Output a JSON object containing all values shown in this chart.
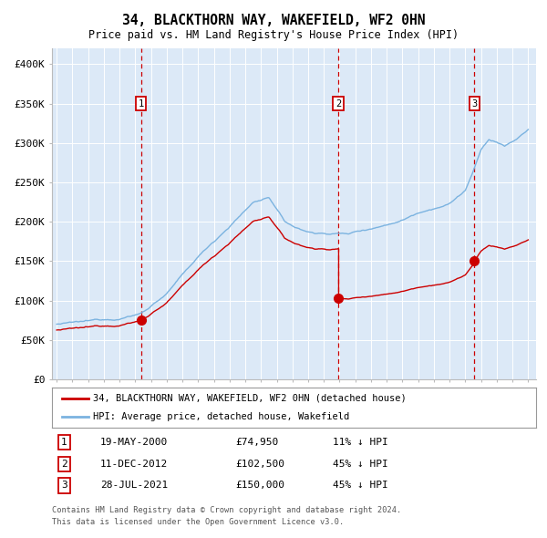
{
  "title": "34, BLACKTHORN WAY, WAKEFIELD, WF2 0HN",
  "subtitle": "Price paid vs. HM Land Registry's House Price Index (HPI)",
  "ylim": [
    0,
    420000
  ],
  "yticks": [
    0,
    50000,
    100000,
    150000,
    200000,
    250000,
    300000,
    350000,
    400000
  ],
  "ytick_labels": [
    "£0",
    "£50K",
    "£100K",
    "£150K",
    "£200K",
    "£250K",
    "£300K",
    "£350K",
    "£400K"
  ],
  "plot_bg": "#dce9f7",
  "hpi_color": "#7bb3e0",
  "price_color": "#cc0000",
  "vline_color": "#cc0000",
  "legend_label_price": "34, BLACKTHORN WAY, WAKEFIELD, WF2 0HN (detached house)",
  "legend_label_hpi": "HPI: Average price, detached house, Wakefield",
  "sale1_date": "19-MAY-2000",
  "sale1_price": 74950,
  "sale1_hpi_pct": "11% ↓ HPI",
  "sale2_date": "11-DEC-2012",
  "sale2_price": 102500,
  "sale2_hpi_pct": "45% ↓ HPI",
  "sale3_date": "28-JUL-2021",
  "sale3_price": 150000,
  "sale3_hpi_pct": "45% ↓ HPI",
  "footer1": "Contains HM Land Registry data © Crown copyright and database right 2024.",
  "footer2": "This data is licensed under the Open Government Licence v3.0.",
  "sale1_x": 2000.37,
  "sale2_x": 2012.92,
  "sale3_x": 2021.57,
  "xlim_left": 1994.7,
  "xlim_right": 2025.5
}
